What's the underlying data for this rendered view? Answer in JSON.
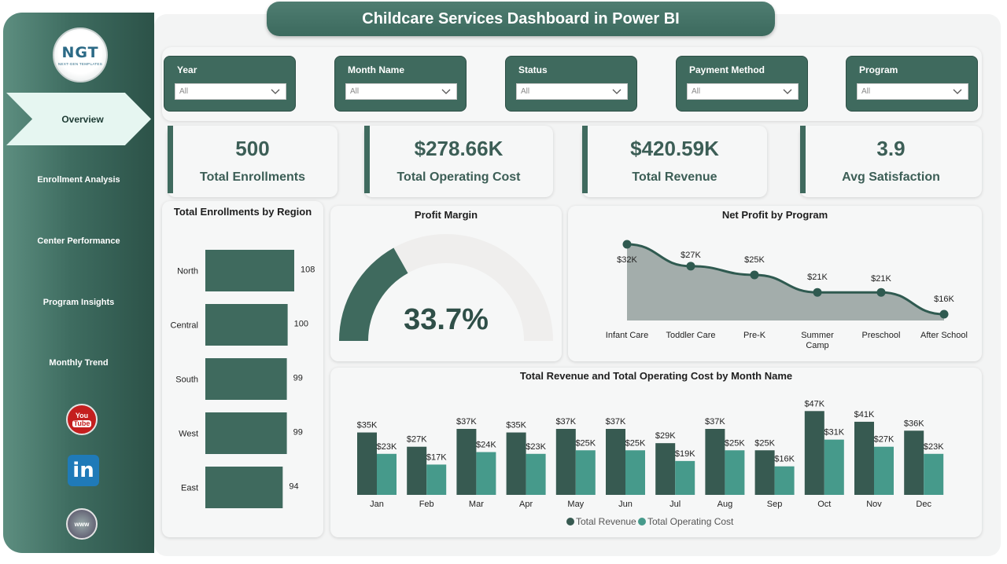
{
  "header": {
    "title": "Childcare Services Dashboard in Power BI"
  },
  "logo": {
    "text": "NGT",
    "subtitle": "NEXT-GEN TEMPLATES"
  },
  "sidebar": {
    "active": "Overview",
    "items": [
      "Enrollment Analysis",
      "Center Performance",
      "Program Insights",
      "Monthly Trend"
    ],
    "social": {
      "youtube_top": "You",
      "youtube_bottom": "Tube",
      "linkedin": "in",
      "web": "www"
    }
  },
  "filters": [
    {
      "label": "Year",
      "value": "All"
    },
    {
      "label": "Month Name",
      "value": "All"
    },
    {
      "label": "Status",
      "value": "All"
    },
    {
      "label": "Payment Method",
      "value": "All"
    },
    {
      "label": "Program",
      "value": "All"
    }
  ],
  "kpis": [
    {
      "value": "500",
      "label": "Total Enrollments"
    },
    {
      "value": "$278.66K",
      "label": "Total Operating Cost"
    },
    {
      "value": "$420.59K",
      "label": "Total Revenue"
    },
    {
      "value": "3.9",
      "label": "Avg Satisfaction"
    }
  ],
  "colors": {
    "primary": "#3f6a5e",
    "dark_bar": "#375a51",
    "light_bar": "#469a8b",
    "area_fill": "#a3adab",
    "gauge_track": "#efeeed"
  },
  "chart_data": [
    {
      "type": "bar",
      "orientation": "horizontal",
      "title": "Total Enrollments by Region",
      "categories": [
        "North",
        "Central",
        "South",
        "West",
        "East"
      ],
      "values": [
        108,
        100,
        99,
        99,
        94
      ],
      "labels": [
        "108",
        "100",
        "99",
        "99",
        "94"
      ]
    },
    {
      "type": "gauge",
      "title": "Profit Margin",
      "value": 33.7,
      "max": 100,
      "label": "33.7%"
    },
    {
      "type": "area",
      "title": "Net Profit by Program",
      "categories": [
        "Infant Care",
        "Toddler Care",
        "Pre-K",
        "Summer Camp",
        "Preschool",
        "After School"
      ],
      "category_lines": [
        [
          "Infant Care"
        ],
        [
          "Toddler Care"
        ],
        [
          "Pre-K"
        ],
        [
          "Summer",
          "Camp"
        ],
        [
          "Preschool"
        ],
        [
          "After School"
        ]
      ],
      "values": [
        32,
        27,
        25,
        21,
        21,
        16
      ],
      "labels": [
        "$32K",
        "$27K",
        "$25K",
        "$21K",
        "$21K",
        "$16K"
      ]
    },
    {
      "type": "bar",
      "title": "Total Revenue and Total Operating Cost by Month Name",
      "categories": [
        "Jan",
        "Feb",
        "Mar",
        "Apr",
        "May",
        "Jun",
        "Jul",
        "Aug",
        "Sep",
        "Oct",
        "Nov",
        "Dec"
      ],
      "series": [
        {
          "name": "Total Revenue",
          "values": [
            35,
            27,
            37,
            35,
            37,
            37,
            29,
            37,
            25,
            47,
            41,
            36
          ],
          "labels": [
            "$35K",
            "$27K",
            "$37K",
            "$35K",
            "$37K",
            "$37K",
            "$29K",
            "$37K",
            "$25K",
            "$47K",
            "$41K",
            "$36K"
          ]
        },
        {
          "name": "Total Operating Cost",
          "values": [
            23,
            17,
            24,
            23,
            25,
            25,
            19,
            25,
            16,
            31,
            27,
            23
          ],
          "labels": [
            "$23K",
            "$17K",
            "$24K",
            "$23K",
            "$25K",
            "$25K",
            "$19K",
            "$25K",
            "$16K",
            "$31K",
            "$27K",
            "$23K"
          ]
        }
      ],
      "legend": "bottom"
    }
  ]
}
